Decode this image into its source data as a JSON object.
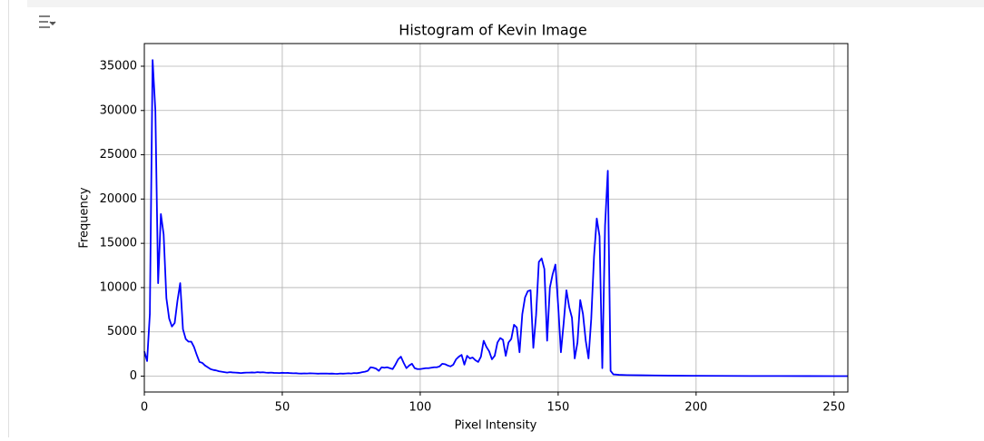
{
  "chart_data": {
    "type": "line",
    "title": "Histogram of Kevin Image",
    "x_label": "Pixel Intensity",
    "y_label": "Frequency",
    "x": [
      0,
      1,
      2,
      3,
      4,
      5,
      6,
      7,
      8,
      9,
      10,
      11,
      12,
      13,
      14,
      15,
      16,
      17,
      18,
      19,
      20,
      21,
      22,
      23,
      24,
      25,
      26,
      27,
      28,
      29,
      30,
      31,
      32,
      33,
      34,
      35,
      36,
      37,
      38,
      39,
      40,
      41,
      42,
      43,
      44,
      45,
      46,
      47,
      48,
      49,
      50,
      51,
      52,
      53,
      54,
      55,
      56,
      57,
      58,
      59,
      60,
      61,
      62,
      63,
      64,
      65,
      66,
      67,
      68,
      69,
      70,
      71,
      72,
      73,
      74,
      75,
      76,
      77,
      78,
      79,
      80,
      81,
      82,
      83,
      84,
      85,
      86,
      87,
      88,
      89,
      90,
      91,
      92,
      93,
      94,
      95,
      96,
      97,
      98,
      99,
      100,
      101,
      102,
      103,
      104,
      105,
      106,
      107,
      108,
      109,
      110,
      111,
      112,
      113,
      114,
      115,
      116,
      117,
      118,
      119,
      120,
      121,
      122,
      123,
      124,
      125,
      126,
      127,
      128,
      129,
      130,
      131,
      132,
      133,
      134,
      135,
      136,
      137,
      138,
      139,
      140,
      141,
      142,
      143,
      144,
      145,
      146,
      147,
      148,
      149,
      150,
      151,
      152,
      153,
      154,
      155,
      156,
      157,
      158,
      159,
      160,
      161,
      162,
      163,
      164,
      165,
      166,
      167,
      168,
      169,
      170,
      172,
      175,
      180,
      185,
      190,
      200,
      210,
      220,
      230,
      240,
      250,
      255
    ],
    "series": [
      {
        "name": "Frequency",
        "color": "#0000ff",
        "values": [
          2800,
          1700,
          7000,
          35700,
          30000,
          10500,
          18300,
          16000,
          8800,
          6500,
          5600,
          6000,
          8500,
          10500,
          5300,
          4200,
          3900,
          3900,
          3300,
          2400,
          1600,
          1500,
          1200,
          1000,
          800,
          700,
          650,
          550,
          500,
          450,
          400,
          450,
          420,
          400,
          380,
          350,
          380,
          400,
          400,
          420,
          400,
          450,
          420,
          440,
          400,
          380,
          400,
          370,
          360,
          350,
          380,
          360,
          370,
          340,
          320,
          330,
          300,
          290,
          310,
          300,
          320,
          310,
          300,
          280,
          300,
          290,
          300,
          280,
          290,
          270,
          260,
          300,
          280,
          300,
          320,
          300,
          350,
          330,
          380,
          450,
          500,
          600,
          1000,
          950,
          850,
          600,
          1000,
          950,
          1000,
          900,
          800,
          1300,
          1900,
          2200,
          1500,
          900,
          1200,
          1400,
          900,
          800,
          800,
          850,
          900,
          900,
          950,
          1000,
          1000,
          1100,
          1400,
          1350,
          1200,
          1100,
          1300,
          1900,
          2200,
          2400,
          1300,
          2300,
          2000,
          2100,
          1800,
          1600,
          2200,
          4000,
          3300,
          2800,
          1900,
          2300,
          3800,
          4300,
          4100,
          2300,
          3800,
          4200,
          5800,
          5500,
          2700,
          7000,
          8900,
          9600,
          9700,
          3200,
          6900,
          12900,
          13300,
          12100,
          4000,
          10000,
          11500,
          12600,
          8000,
          2700,
          6000,
          9700,
          7800,
          6600,
          2000,
          3800,
          8600,
          7000,
          4000,
          2000,
          6500,
          13500,
          17800,
          15800,
          900,
          17000,
          23200,
          600,
          200,
          150,
          120,
          100,
          80,
          60,
          40,
          30,
          20,
          15,
          10,
          5,
          0
        ]
      }
    ],
    "xlim": [
      0,
      255
    ],
    "ylim": [
      -1790,
      37560
    ],
    "xticks": [
      0,
      50,
      100,
      150,
      200,
      250
    ],
    "yticks": [
      0,
      5000,
      10000,
      15000,
      20000,
      25000,
      30000,
      35000
    ],
    "grid": true
  }
}
